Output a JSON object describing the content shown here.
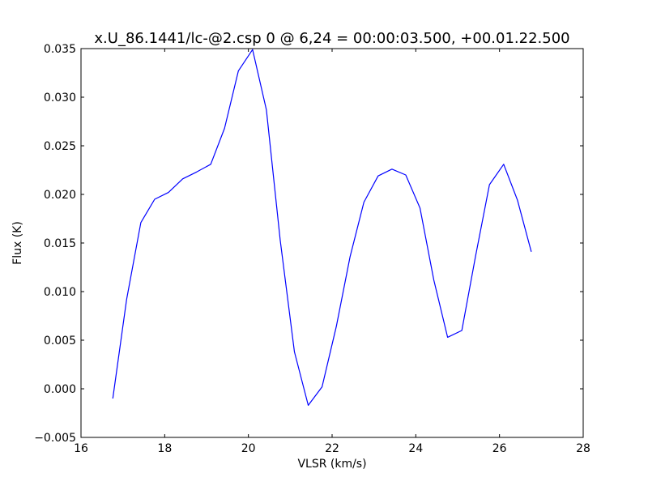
{
  "chart_data": {
    "type": "line",
    "title": "x.U_86.1441/lc-@2.csp 0 @ 6,24 = 00:00:03.500, +00.01.22.500",
    "xlabel": "VLSR (km/s)",
    "ylabel": "Flux (K)",
    "xlim": [
      16,
      28
    ],
    "ylim": [
      -0.005,
      0.035
    ],
    "xticks": [
      16,
      18,
      20,
      22,
      24,
      26,
      28
    ],
    "xtick_labels": [
      "16",
      "18",
      "20",
      "22",
      "24",
      "26",
      "28"
    ],
    "yticks": [
      -0.005,
      0.0,
      0.005,
      0.01,
      0.015,
      0.02,
      0.025,
      0.03,
      0.035
    ],
    "ytick_labels": [
      "−0.005",
      "0.000",
      "0.005",
      "0.010",
      "0.015",
      "0.020",
      "0.025",
      "0.030",
      "0.035"
    ],
    "grid": false,
    "legend": "none",
    "line_color": "#0000ff",
    "series": [
      {
        "x": [
          16.76,
          17.09,
          17.43,
          17.76,
          18.09,
          18.43,
          18.76,
          19.1,
          19.43,
          19.76,
          20.1,
          20.43,
          20.76,
          21.1,
          21.43,
          21.76,
          22.1,
          22.43,
          22.76,
          23.1,
          23.43,
          23.76,
          24.1,
          24.43,
          24.76,
          25.1,
          25.43,
          25.76,
          26.1,
          26.43,
          26.76
        ],
        "y": [
          -0.001,
          0.0092,
          0.0171,
          0.0195,
          0.0202,
          0.0216,
          0.0223,
          0.0231,
          0.0268,
          0.0327,
          0.0349,
          0.0287,
          0.0153,
          0.0038,
          -0.0017,
          0.0002,
          0.0064,
          0.0136,
          0.0192,
          0.0219,
          0.0226,
          0.022,
          0.0186,
          0.0112,
          0.0053,
          0.006,
          0.0137,
          0.021,
          0.0231,
          0.0194,
          0.0141
        ]
      }
    ]
  }
}
